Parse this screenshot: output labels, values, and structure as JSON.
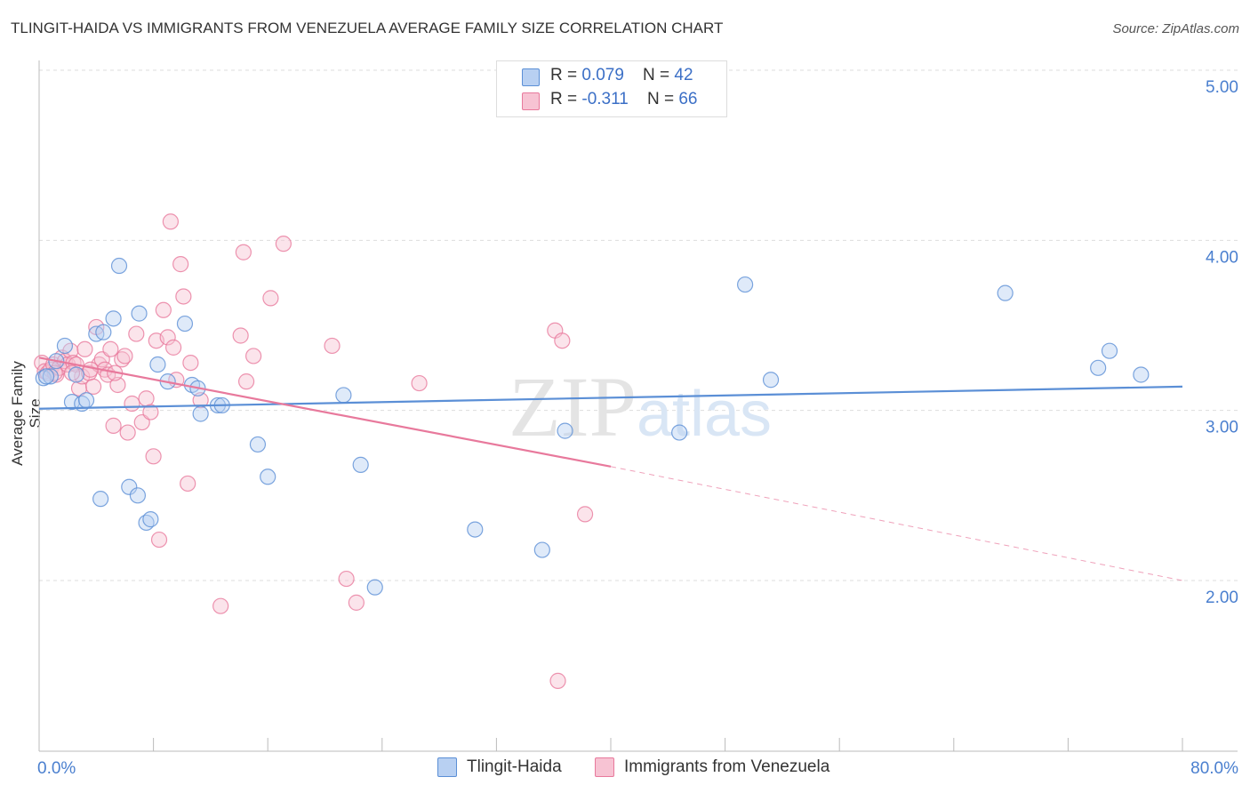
{
  "title": "TLINGIT-HAIDA VS IMMIGRANTS FROM VENEZUELA AVERAGE FAMILY SIZE CORRELATION CHART",
  "source": "Source: ZipAtlas.com",
  "watermark": "ZIPatlas",
  "colors": {
    "blue": "#5b8fd6",
    "pink": "#e8799c",
    "blueFill": "#b8d0f2",
    "pinkFill": "#f7c3d3",
    "tick": "#4a7fcf"
  },
  "legend": {
    "row1": {
      "r_label": "R = ",
      "r_value": "0.079",
      "n_label": "N = ",
      "n_value": "42"
    },
    "row2": {
      "r_label": "R = ",
      "r_value": "-0.311",
      "n_label": "N = ",
      "n_value": "66"
    }
  },
  "bottom_legend": {
    "blue_label": "Tlingit-Haida",
    "pink_label": "Immigrants from Venezuela"
  },
  "chart_data": {
    "type": "scatter",
    "title": "TLINGIT-HAIDA VS IMMIGRANTS FROM VENEZUELA AVERAGE FAMILY SIZE CORRELATION CHART",
    "xlabel": "",
    "ylabel": "Average Family Size",
    "xlim": [
      0,
      80
    ],
    "ylim": [
      1.0,
      5.15
    ],
    "x_tick_labels": {
      "left": "0.0%",
      "right": "80.0%"
    },
    "y_ticks": [
      {
        "value": 5.0,
        "label": "5.00"
      },
      {
        "value": 4.0,
        "label": "4.00"
      },
      {
        "value": 3.0,
        "label": "3.00"
      },
      {
        "value": 2.0,
        "label": "2.00"
      }
    ],
    "series": [
      {
        "name": "Tlingit-Haida",
        "color": "#5b8fd6",
        "trend": {
          "x0": 0,
          "y0": 3.01,
          "x1": 80,
          "y1": 3.14
        },
        "points": [
          [
            0.3,
            3.19
          ],
          [
            0.8,
            3.2
          ],
          [
            1.2,
            3.29
          ],
          [
            1.8,
            3.38
          ],
          [
            2.3,
            3.05
          ],
          [
            2.6,
            3.21
          ],
          [
            3.0,
            3.04
          ],
          [
            3.3,
            3.06
          ],
          [
            4.0,
            3.45
          ],
          [
            4.3,
            2.48
          ],
          [
            4.5,
            3.46
          ],
          [
            5.2,
            3.54
          ],
          [
            5.6,
            3.85
          ],
          [
            6.3,
            2.55
          ],
          [
            6.9,
            2.5
          ],
          [
            7.0,
            3.57
          ],
          [
            7.5,
            2.34
          ],
          [
            7.8,
            2.36
          ],
          [
            8.3,
            3.27
          ],
          [
            9.0,
            3.17
          ],
          [
            10.2,
            3.51
          ],
          [
            10.7,
            3.15
          ],
          [
            11.1,
            3.13
          ],
          [
            11.3,
            2.98
          ],
          [
            12.5,
            3.03
          ],
          [
            12.8,
            3.03
          ],
          [
            15.3,
            2.8
          ],
          [
            16.0,
            2.61
          ],
          [
            21.3,
            3.09
          ],
          [
            22.5,
            2.68
          ],
          [
            23.5,
            1.96
          ],
          [
            30.5,
            2.3
          ],
          [
            35.2,
            2.18
          ],
          [
            36.8,
            2.88
          ],
          [
            44.8,
            2.87
          ],
          [
            49.4,
            3.74
          ],
          [
            51.2,
            3.18
          ],
          [
            67.6,
            3.69
          ],
          [
            74.1,
            3.25
          ],
          [
            74.9,
            3.35
          ],
          [
            77.1,
            3.21
          ],
          [
            0.5,
            3.2
          ]
        ]
      },
      {
        "name": "Immigrants from Venezuela",
        "color": "#e8799c",
        "trend": {
          "x0": 0,
          "y0": 3.31,
          "x1": 40,
          "y1": 2.67,
          "dashed_to": {
            "x": 80,
            "y": 2.0
          }
        },
        "points": [
          [
            0.2,
            3.28
          ],
          [
            0.4,
            3.23
          ],
          [
            0.6,
            3.22
          ],
          [
            0.8,
            3.24
          ],
          [
            1.0,
            3.27
          ],
          [
            1.2,
            3.21
          ],
          [
            1.4,
            3.25
          ],
          [
            1.6,
            3.31
          ],
          [
            1.8,
            3.29
          ],
          [
            2.0,
            3.27
          ],
          [
            2.2,
            3.35
          ],
          [
            2.4,
            3.28
          ],
          [
            2.6,
            3.27
          ],
          [
            2.8,
            3.13
          ],
          [
            3.0,
            3.2
          ],
          [
            3.2,
            3.36
          ],
          [
            3.5,
            3.22
          ],
          [
            3.8,
            3.14
          ],
          [
            4.0,
            3.49
          ],
          [
            4.2,
            3.27
          ],
          [
            4.4,
            3.3
          ],
          [
            4.6,
            3.24
          ],
          [
            4.8,
            3.21
          ],
          [
            5.0,
            3.36
          ],
          [
            5.2,
            2.91
          ],
          [
            5.5,
            3.15
          ],
          [
            5.8,
            3.3
          ],
          [
            6.0,
            3.32
          ],
          [
            6.2,
            2.87
          ],
          [
            6.5,
            3.04
          ],
          [
            6.8,
            3.45
          ],
          [
            7.2,
            2.93
          ],
          [
            7.5,
            3.07
          ],
          [
            7.8,
            2.99
          ],
          [
            8.0,
            2.73
          ],
          [
            8.2,
            3.41
          ],
          [
            8.4,
            2.24
          ],
          [
            8.7,
            3.59
          ],
          [
            9.0,
            3.43
          ],
          [
            9.2,
            4.11
          ],
          [
            9.4,
            3.37
          ],
          [
            9.6,
            3.18
          ],
          [
            9.9,
            3.86
          ],
          [
            10.1,
            3.67
          ],
          [
            10.4,
            2.57
          ],
          [
            10.6,
            3.28
          ],
          [
            11.3,
            3.06
          ],
          [
            12.7,
            1.85
          ],
          [
            14.1,
            3.44
          ],
          [
            14.3,
            3.93
          ],
          [
            14.5,
            3.17
          ],
          [
            15.0,
            3.32
          ],
          [
            16.2,
            3.66
          ],
          [
            17.1,
            3.98
          ],
          [
            20.5,
            3.38
          ],
          [
            21.5,
            2.01
          ],
          [
            22.2,
            1.87
          ],
          [
            26.6,
            3.16
          ],
          [
            36.1,
            3.47
          ],
          [
            36.6,
            3.41
          ],
          [
            36.3,
            1.41
          ],
          [
            38.2,
            2.39
          ],
          [
            5.3,
            3.22
          ],
          [
            2.3,
            3.22
          ],
          [
            1.1,
            3.22
          ],
          [
            3.6,
            3.24
          ]
        ]
      }
    ]
  }
}
